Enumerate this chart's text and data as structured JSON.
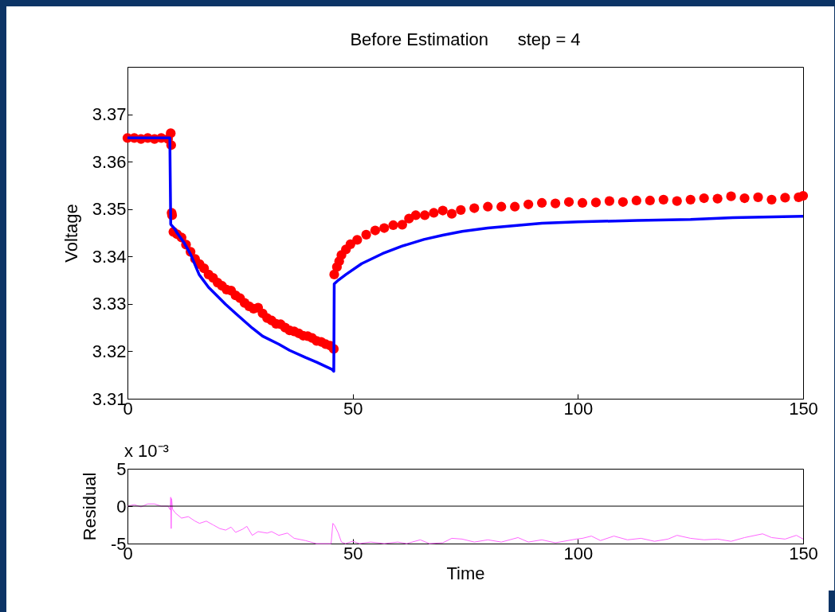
{
  "chart_data": [
    {
      "type": "line",
      "title": "Before Estimation      step = 4",
      "ylabel": "Voltage",
      "xlim": [
        0,
        150
      ],
      "xticks": [
        0,
        50,
        100,
        150
      ],
      "ylim": [
        3.31,
        3.38
      ],
      "yticks": [
        3.31,
        3.32,
        3.33,
        3.34,
        3.35,
        3.36,
        3.37
      ],
      "grid": false,
      "legend": false,
      "series": [
        {
          "type": "scatter",
          "marker": "circle",
          "color": "#ff0000",
          "x": [
            0,
            1.5,
            3,
            4.5,
            6,
            7.5,
            9,
            9.6,
            9.7,
            9.8,
            9.9,
            10.2,
            11,
            12,
            13,
            14,
            15,
            16,
            17,
            18,
            19,
            20,
            21,
            22,
            23,
            24,
            25,
            26,
            27,
            28,
            29,
            30,
            31,
            32,
            33,
            34,
            35,
            36,
            37,
            38,
            39,
            40,
            41,
            42,
            43,
            44,
            45,
            45.8,
            45.9,
            46.5,
            47,
            47.5,
            48.5,
            49.5,
            51,
            53,
            55,
            57,
            59,
            61,
            62.5,
            64,
            66,
            68,
            70,
            72,
            74,
            77,
            80,
            83,
            86,
            89,
            92,
            95,
            98,
            101,
            104,
            107,
            110,
            113,
            116,
            119,
            122,
            125,
            128,
            131,
            134,
            137,
            140,
            143,
            146,
            149,
            150
          ],
          "values": [
            3.365,
            3.365,
            3.3648,
            3.365,
            3.3648,
            3.365,
            3.3648,
            3.366,
            3.3635,
            3.3492,
            3.3487,
            3.3452,
            3.3447,
            3.344,
            3.3425,
            3.341,
            3.3395,
            3.3384,
            3.3375,
            3.3362,
            3.3355,
            3.3345,
            3.3338,
            3.333,
            3.3328,
            3.3318,
            3.3312,
            3.3302,
            3.3295,
            3.329,
            3.3292,
            3.328,
            3.327,
            3.3265,
            3.3258,
            3.3257,
            3.325,
            3.3244,
            3.3242,
            3.3238,
            3.3233,
            3.3232,
            3.3228,
            3.3222,
            3.322,
            3.3215,
            3.3212,
            3.3205,
            3.3362,
            3.3378,
            3.339,
            3.3403,
            3.3415,
            3.3426,
            3.3435,
            3.3446,
            3.3455,
            3.346,
            3.3466,
            3.3467,
            3.348,
            3.3487,
            3.3487,
            3.3492,
            3.3497,
            3.349,
            3.3498,
            3.3502,
            3.3505,
            3.3505,
            3.3505,
            3.351,
            3.3513,
            3.3512,
            3.3515,
            3.3513,
            3.3514,
            3.3517,
            3.3515,
            3.3518,
            3.3518,
            3.352,
            3.3517,
            3.352,
            3.3523,
            3.3522,
            3.3527,
            3.3523,
            3.3525,
            3.352,
            3.3524,
            3.3525,
            3.3528
          ]
        },
        {
          "type": "line",
          "color": "#0000ff",
          "x": [
            0,
            9.4,
            9.6,
            10.5,
            11,
            12.5,
            14,
            15.9,
            18,
            21.8,
            24,
            27.7,
            30,
            33.6,
            36,
            39.5,
            42,
            45.4,
            45.8,
            45.9,
            46.8,
            48.5,
            52,
            56.6,
            61,
            65.8,
            70,
            74.3,
            80,
            92,
            100,
            113.2,
            125,
            134.4,
            150
          ],
          "values": [
            3.365,
            3.365,
            3.3468,
            3.3458,
            3.345,
            3.343,
            3.3405,
            3.3362,
            3.3335,
            3.3299,
            3.328,
            3.3249,
            3.3232,
            3.3215,
            3.3202,
            3.3187,
            3.3177,
            3.3162,
            3.3158,
            3.3342,
            3.335,
            3.3362,
            3.3385,
            3.3406,
            3.3422,
            3.3436,
            3.3445,
            3.3453,
            3.346,
            3.347,
            3.3473,
            3.3476,
            3.3478,
            3.3482,
            3.3485
          ]
        }
      ]
    },
    {
      "type": "line",
      "ylabel": "Residual",
      "xlabel": "Time",
      "xlim": [
        0,
        150
      ],
      "xticks": [
        0,
        50,
        100,
        150
      ],
      "ylim": [
        -5,
        5
      ],
      "yticks": [
        -5,
        0,
        5
      ],
      "grid": false,
      "legend": false,
      "annotations": [
        "x 10⁻³"
      ],
      "ref_lines": [
        {
          "axis": "y",
          "value": 0,
          "color": "#000000"
        }
      ],
      "series": [
        {
          "type": "line",
          "color": "#ff66ff",
          "x": [
            0,
            1.5,
            3,
            4.5,
            6,
            7.5,
            9,
            9.5,
            9.6,
            9.7,
            9.8,
            10,
            10.6,
            12,
            13.5,
            15,
            16,
            17.5,
            19,
            20.5,
            21.8,
            23,
            24,
            25.5,
            26.5,
            27.7,
            29,
            31,
            32,
            33.6,
            35.5,
            37,
            39.5,
            41.9,
            45.2,
            45.6,
            46,
            46.8,
            47.5,
            48.4,
            50,
            51.5,
            54,
            57,
            60,
            62,
            65,
            67,
            70,
            72,
            74.3,
            77,
            80,
            83,
            86.7,
            89,
            92,
            95,
            99.6,
            101,
            103,
            105,
            108,
            111,
            114,
            117,
            120,
            122,
            125,
            128,
            131,
            134,
            137,
            141,
            143,
            146,
            148.5,
            150
          ],
          "values": [
            0,
            0.2,
            -0.1,
            0.3,
            0.3,
            0,
            0,
            -0.5,
            1.2,
            -3,
            1,
            -0.4,
            -0.9,
            -1.6,
            -1.4,
            -2,
            -2.3,
            -2,
            -2.5,
            -3,
            -3.2,
            -2.8,
            -3.5,
            -3.1,
            -2.7,
            -3.9,
            -3.4,
            -3.6,
            -3.4,
            -3.9,
            -3.6,
            -4.3,
            -4.6,
            -5,
            -5,
            -2.3,
            -2.6,
            -3.6,
            -4.8,
            -5,
            -4.7,
            -5,
            -4.8,
            -5,
            -4.8,
            -5,
            -4.5,
            -5,
            -4.9,
            -4.3,
            -4.4,
            -4.8,
            -4.5,
            -4.8,
            -4.2,
            -4.8,
            -4.5,
            -4.9,
            -4.4,
            -4.3,
            -4,
            -4.6,
            -4,
            -4.5,
            -4.3,
            -4.7,
            -4.4,
            -3.9,
            -4.3,
            -4.5,
            -4.4,
            -4.7,
            -4.2,
            -3.7,
            -4.2,
            -4.4,
            -3.9,
            -4.4
          ]
        }
      ]
    }
  ]
}
